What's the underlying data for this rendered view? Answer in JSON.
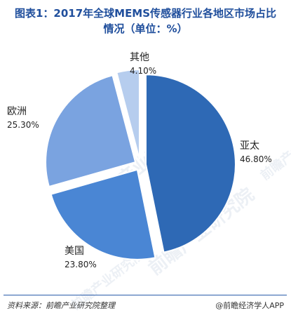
{
  "title": {
    "line1": "图表1：2017年全球MEMS传感器行业各地区市场占比",
    "line2": "情况（单位：%）"
  },
  "watermark": "前瞻产业研究院",
  "footer": {
    "source": "资料来源：前瞻产业研究院整理",
    "brand": "@前瞻经济学人APP"
  },
  "colors": {
    "title": "#1f4e9c",
    "rule": "#2a5caa"
  },
  "chart_data": {
    "type": "pie",
    "slices": [
      {
        "name": "亚太",
        "value": 46.8,
        "label": "46.80%",
        "color": "#2e69b5"
      },
      {
        "name": "美国",
        "value": 23.8,
        "label": "23.80%",
        "color": "#4a86d4"
      },
      {
        "name": "欧洲",
        "value": 25.3,
        "label": "25.30%",
        "color": "#7aa3e0"
      },
      {
        "name": "其他",
        "value": 4.1,
        "label": "4.10%",
        "color": "#b6cdee"
      }
    ],
    "start_angle_deg": 0,
    "direction": "clockwise",
    "exploded": true
  }
}
